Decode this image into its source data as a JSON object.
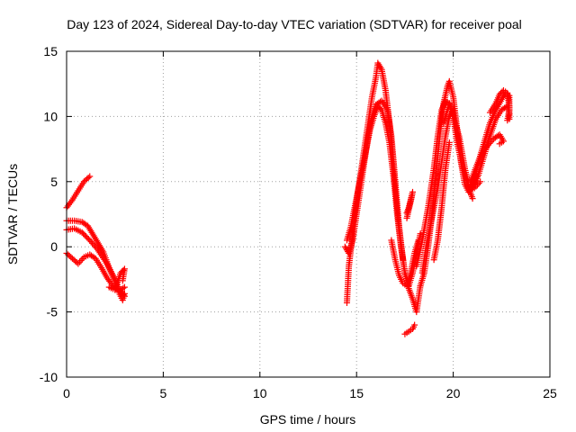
{
  "chart_data": {
    "type": "scatter",
    "title": "Day 123 of 2024, Sidereal Day-to-day VTEC variation (SDTVAR) for receiver poal",
    "xlabel": "GPS time / hours",
    "ylabel": "SDTVAR / TECUs",
    "xlim": [
      0,
      25
    ],
    "ylim": [
      -10,
      15
    ],
    "x_ticks": [
      "0",
      "5",
      "10",
      "15",
      "20",
      "25"
    ],
    "y_ticks": [
      "-10",
      "-5",
      "0",
      "5",
      "10",
      "15"
    ],
    "grid": true,
    "marker": "+",
    "color": "#ff0000",
    "series": [
      {
        "name": "SDTVAR",
        "segments": [
          [
            [
              0.0,
              3.0
            ],
            [
              0.3,
              3.6
            ],
            [
              0.6,
              4.3
            ],
            [
              0.9,
              5.0
            ],
            [
              1.2,
              5.4
            ]
          ],
          [
            [
              0.0,
              2.0
            ],
            [
              0.4,
              2.0
            ],
            [
              0.8,
              1.9
            ],
            [
              1.1,
              1.6
            ],
            [
              1.5,
              0.6
            ],
            [
              1.9,
              -0.4
            ],
            [
              2.2,
              -1.6
            ],
            [
              2.5,
              -2.6
            ],
            [
              2.7,
              -3.5
            ],
            [
              2.9,
              -4.1
            ],
            [
              3.0,
              -3.6
            ]
          ],
          [
            [
              0.0,
              1.3
            ],
            [
              0.4,
              1.4
            ],
            [
              0.8,
              1.1
            ],
            [
              1.2,
              0.5
            ],
            [
              1.6,
              -0.2
            ],
            [
              2.0,
              -1.1
            ],
            [
              2.4,
              -2.2
            ],
            [
              2.7,
              -3.2
            ],
            [
              3.0,
              -3.8
            ]
          ],
          [
            [
              0.0,
              -0.5
            ],
            [
              0.3,
              -0.9
            ],
            [
              0.6,
              -1.3
            ],
            [
              0.9,
              -0.8
            ],
            [
              1.2,
              -0.6
            ],
            [
              1.5,
              -0.9
            ],
            [
              1.8,
              -1.6
            ],
            [
              2.1,
              -2.4
            ],
            [
              2.4,
              -3.0
            ],
            [
              2.7,
              -3.4
            ],
            [
              3.0,
              -3.1
            ]
          ],
          [
            [
              2.2,
              -3.1
            ],
            [
              2.5,
              -3.3
            ],
            [
              2.8,
              -2.0
            ],
            [
              3.0,
              -1.7
            ],
            [
              2.9,
              -2.6
            ]
          ],
          [
            [
              14.5,
              -4.3
            ],
            [
              14.6,
              -1.5
            ],
            [
              14.8,
              1.0
            ],
            [
              15.0,
              3.5
            ],
            [
              15.2,
              5.5
            ],
            [
              15.4,
              7.5
            ],
            [
              15.6,
              9.5
            ],
            [
              15.8,
              11.5
            ],
            [
              16.0,
              13.0
            ],
            [
              16.1,
              14.1
            ],
            [
              16.3,
              13.6
            ],
            [
              16.5,
              12.0
            ],
            [
              16.7,
              9.5
            ],
            [
              16.9,
              6.5
            ],
            [
              17.1,
              3.0
            ],
            [
              17.3,
              0.0
            ],
            [
              17.5,
              -2.0
            ],
            [
              17.7,
              -3.0
            ],
            [
              17.9,
              -2.0
            ],
            [
              18.1,
              -0.5
            ],
            [
              18.3,
              1.0
            ]
          ],
          [
            [
              14.5,
              0.5
            ],
            [
              14.7,
              1.5
            ],
            [
              14.9,
              3.0
            ],
            [
              15.1,
              4.5
            ],
            [
              15.3,
              6.0
            ],
            [
              15.5,
              7.5
            ],
            [
              15.7,
              9.0
            ],
            [
              15.9,
              10.0
            ],
            [
              16.1,
              10.8
            ],
            [
              16.3,
              10.5
            ],
            [
              16.5,
              9.5
            ],
            [
              16.7,
              8.0
            ],
            [
              16.9,
              5.5
            ],
            [
              17.1,
              2.5
            ],
            [
              17.3,
              0.0
            ],
            [
              17.5,
              -2.0
            ],
            [
              17.7,
              -3.2
            ],
            [
              17.9,
              -4.0
            ],
            [
              18.1,
              -5.0
            ],
            [
              18.3,
              -3.0
            ]
          ],
          [
            [
              14.4,
              0.0
            ],
            [
              14.6,
              -0.5
            ],
            [
              14.8,
              0.5
            ],
            [
              15.0,
              2.5
            ],
            [
              15.2,
              4.5
            ],
            [
              15.4,
              6.5
            ],
            [
              15.6,
              8.5
            ],
            [
              15.8,
              10.0
            ],
            [
              16.0,
              10.9
            ],
            [
              16.3,
              11.2
            ],
            [
              16.6,
              10.5
            ],
            [
              16.8,
              8.5
            ],
            [
              17.0,
              5.0
            ],
            [
              17.2,
              1.5
            ],
            [
              17.4,
              -1.0
            ]
          ],
          [
            [
              16.8,
              0.5
            ],
            [
              17.0,
              -1.0
            ],
            [
              17.2,
              -2.2
            ],
            [
              17.4,
              -2.8
            ],
            [
              17.6,
              -3.0
            ],
            [
              17.8,
              -2.0
            ],
            [
              18.0,
              -0.5
            ],
            [
              18.2,
              0.5
            ]
          ],
          [
            [
              17.5,
              -6.7
            ],
            [
              17.7,
              -6.5
            ],
            [
              17.9,
              -6.3
            ],
            [
              18.0,
              -6.0
            ]
          ],
          [
            [
              17.6,
              2.2
            ],
            [
              17.8,
              3.5
            ],
            [
              17.9,
              4.2
            ],
            [
              17.7,
              3.0
            ],
            [
              17.6,
              2.6
            ]
          ],
          [
            [
              18.3,
              -3.0
            ],
            [
              18.5,
              -2.0
            ],
            [
              18.7,
              0.0
            ],
            [
              18.9,
              2.5
            ],
            [
              19.1,
              5.5
            ],
            [
              19.3,
              8.5
            ],
            [
              19.5,
              11.0
            ],
            [
              19.7,
              12.3
            ],
            [
              19.8,
              12.7
            ],
            [
              20.0,
              11.5
            ],
            [
              20.2,
              9.0
            ],
            [
              20.4,
              6.5
            ],
            [
              20.6,
              4.8
            ],
            [
              20.8,
              4.2
            ],
            [
              21.0,
              4.5
            ],
            [
              21.2,
              5.5
            ]
          ],
          [
            [
              18.1,
              -1.5
            ],
            [
              18.4,
              0.5
            ],
            [
              18.7,
              3.0
            ],
            [
              19.0,
              6.0
            ],
            [
              19.2,
              8.5
            ],
            [
              19.4,
              10.5
            ],
            [
              19.6,
              11.2
            ],
            [
              19.8,
              11.0
            ],
            [
              20.0,
              10.0
            ],
            [
              20.2,
              8.0
            ],
            [
              20.5,
              6.0
            ],
            [
              20.8,
              4.5
            ],
            [
              21.0,
              3.7
            ]
          ],
          [
            [
              18.4,
              -2.0
            ],
            [
              18.6,
              0.0
            ],
            [
              18.8,
              1.5
            ],
            [
              19.0,
              3.0
            ],
            [
              19.2,
              4.5
            ],
            [
              19.4,
              6.5
            ],
            [
              19.6,
              8.5
            ],
            [
              19.8,
              10.0
            ],
            [
              20.0,
              10.5
            ],
            [
              20.2,
              9.0
            ]
          ],
          [
            [
              19.0,
              -1.0
            ],
            [
              19.2,
              0.5
            ],
            [
              19.4,
              3.0
            ],
            [
              19.6,
              6.0
            ],
            [
              19.8,
              8.0
            ]
          ],
          [
            [
              19.5,
              9.5
            ],
            [
              19.8,
              11.0
            ],
            [
              20.0,
              10.0
            ],
            [
              20.3,
              8.5
            ],
            [
              20.6,
              6.0
            ],
            [
              20.8,
              4.8
            ],
            [
              21.1,
              4.5
            ],
            [
              21.4,
              5.0
            ]
          ],
          [
            [
              21.0,
              5.0
            ],
            [
              21.3,
              6.5
            ],
            [
              21.6,
              8.0
            ],
            [
              21.9,
              9.5
            ],
            [
              22.2,
              10.5
            ],
            [
              22.5,
              11.3
            ],
            [
              22.7,
              11.8
            ],
            [
              22.9,
              11.6
            ],
            [
              22.9,
              10.5
            ],
            [
              22.8,
              9.7
            ]
          ],
          [
            [
              21.0,
              4.6
            ],
            [
              21.3,
              5.5
            ],
            [
              21.6,
              7.0
            ],
            [
              21.9,
              8.5
            ],
            [
              22.2,
              9.8
            ],
            [
              22.5,
              10.5
            ],
            [
              22.8,
              10.8
            ],
            [
              22.9,
              10.2
            ]
          ],
          [
            [
              20.9,
              5.0
            ],
            [
              21.2,
              6.2
            ],
            [
              21.5,
              7.2
            ],
            [
              21.8,
              7.8
            ],
            [
              22.1,
              8.3
            ],
            [
              22.4,
              8.6
            ],
            [
              22.6,
              8.1
            ],
            [
              22.4,
              7.9
            ]
          ],
          [
            [
              21.9,
              10.3
            ],
            [
              22.2,
              11.0
            ],
            [
              22.4,
              11.7
            ],
            [
              22.6,
              12.0
            ],
            [
              22.8,
              11.8
            ],
            [
              22.9,
              10.8
            ],
            [
              22.9,
              9.8
            ]
          ]
        ]
      }
    ]
  }
}
